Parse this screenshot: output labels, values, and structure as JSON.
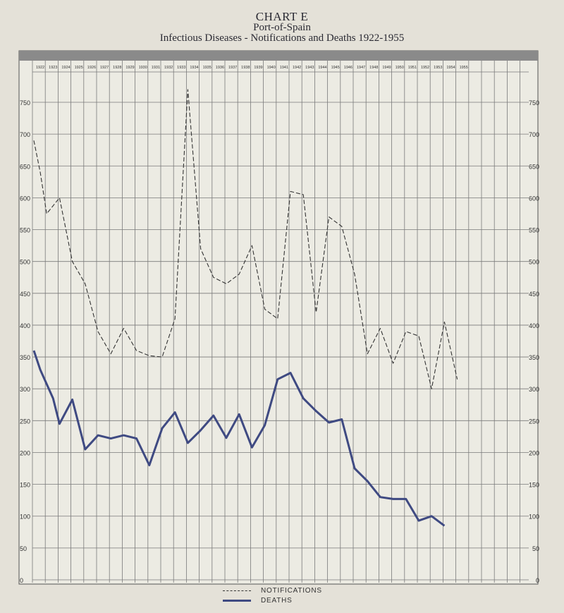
{
  "header": {
    "title": "CHART E",
    "subtitle": "Port-of-Spain",
    "caption": "Infectious Diseases - Notifications and Deaths 1922-1955"
  },
  "colors": {
    "paper": "#e4e1d8",
    "grid": "#7a7a7a",
    "notifications": "#333333",
    "deaths": "#3f4a82"
  },
  "chart_data": {
    "type": "line",
    "title": "Infectious Diseases - Notifications and Deaths 1922-1955",
    "xlabel": "",
    "ylabel": "",
    "ylim": [
      0,
      750
    ],
    "y_ticks": [
      0,
      50,
      100,
      150,
      200,
      250,
      300,
      350,
      400,
      450,
      500,
      550,
      600,
      650,
      700,
      750
    ],
    "grid": true,
    "legend_position": "bottom-center",
    "year_labels": [
      "1922",
      "1923",
      "1924",
      "1925",
      "1926",
      "1927",
      "1928",
      "1929",
      "1930",
      "1931",
      "1932",
      "1933",
      "1934",
      "1935",
      "1936",
      "1937",
      "1938",
      "1939",
      "1940",
      "1941",
      "1942",
      "1943",
      "1944",
      "1945",
      "1946",
      "1947",
      "1948",
      "1949",
      "1950",
      "1951",
      "1952",
      "1953",
      "1954",
      "1955"
    ],
    "series": [
      {
        "name": "NOTIFICATIONS",
        "style": "dashed",
        "points": [
          [
            1922,
            690
          ],
          [
            1922.5,
            640
          ],
          [
            1923,
            575
          ],
          [
            1924,
            600
          ],
          [
            1925,
            500
          ],
          [
            1926,
            465
          ],
          [
            1927,
            390
          ],
          [
            1928,
            355
          ],
          [
            1929,
            395
          ],
          [
            1930,
            360
          ],
          [
            1931,
            352
          ],
          [
            1932,
            350
          ],
          [
            1933,
            410
          ],
          [
            1934,
            770
          ],
          [
            1935,
            520
          ],
          [
            1936,
            475
          ],
          [
            1937,
            465
          ],
          [
            1938,
            480
          ],
          [
            1939,
            525
          ],
          [
            1940,
            425
          ],
          [
            1941,
            410
          ],
          [
            1942,
            610
          ],
          [
            1943,
            605
          ],
          [
            1944,
            420
          ],
          [
            1945,
            570
          ],
          [
            1946,
            555
          ],
          [
            1947,
            480
          ],
          [
            1948,
            355
          ],
          [
            1949,
            395
          ],
          [
            1950,
            340
          ],
          [
            1951,
            390
          ],
          [
            1952,
            383
          ],
          [
            1953,
            300
          ],
          [
            1954,
            405
          ],
          [
            1955,
            315
          ]
        ]
      },
      {
        "name": "DEATHS",
        "style": "solid",
        "points": [
          [
            1922,
            360
          ],
          [
            1922.5,
            330
          ],
          [
            1923.5,
            285
          ],
          [
            1924,
            245
          ],
          [
            1925,
            283
          ],
          [
            1926,
            205
          ],
          [
            1927,
            227
          ],
          [
            1928,
            222
          ],
          [
            1929,
            227
          ],
          [
            1930,
            222
          ],
          [
            1931,
            180
          ],
          [
            1932,
            238
          ],
          [
            1933,
            263
          ],
          [
            1934,
            215
          ],
          [
            1935,
            235
          ],
          [
            1936,
            258
          ],
          [
            1937,
            223
          ],
          [
            1938,
            260
          ],
          [
            1939,
            208
          ],
          [
            1940,
            243
          ],
          [
            1941,
            315
          ],
          [
            1942,
            325
          ],
          [
            1943,
            285
          ],
          [
            1944,
            265
          ],
          [
            1945,
            247
          ],
          [
            1946,
            252
          ],
          [
            1947,
            175
          ],
          [
            1948,
            155
          ],
          [
            1949,
            130
          ],
          [
            1950,
            127
          ],
          [
            1951,
            127
          ],
          [
            1952,
            93
          ],
          [
            1953,
            100
          ],
          [
            1954,
            85
          ]
        ]
      }
    ]
  },
  "legend": {
    "notifications": "NOTIFICATIONS",
    "deaths": "DEATHS"
  }
}
